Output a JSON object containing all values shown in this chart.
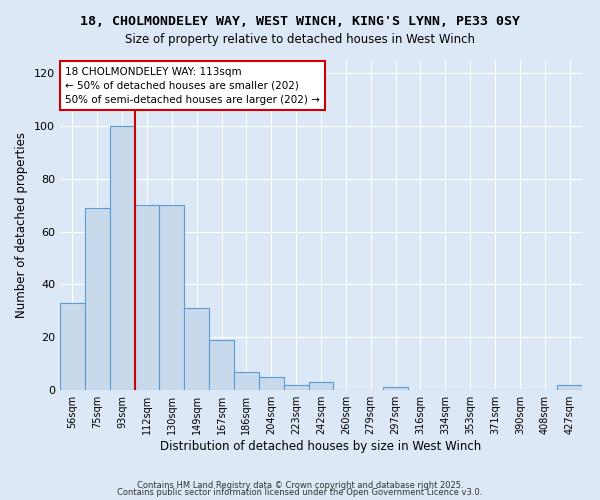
{
  "title": "18, CHOLMONDELEY WAY, WEST WINCH, KING'S LYNN, PE33 0SY",
  "subtitle": "Size of property relative to detached houses in West Winch",
  "xlabel": "Distribution of detached houses by size in West Winch",
  "ylabel": "Number of detached properties",
  "bar_labels": [
    "56sqm",
    "75sqm",
    "93sqm",
    "112sqm",
    "130sqm",
    "149sqm",
    "167sqm",
    "186sqm",
    "204sqm",
    "223sqm",
    "242sqm",
    "260sqm",
    "279sqm",
    "297sqm",
    "316sqm",
    "334sqm",
    "353sqm",
    "371sqm",
    "390sqm",
    "408sqm",
    "427sqm"
  ],
  "bar_values": [
    33,
    69,
    100,
    70,
    70,
    31,
    19,
    7,
    5,
    2,
    3,
    0,
    0,
    1,
    0,
    0,
    0,
    0,
    0,
    0,
    2
  ],
  "bar_color": "#c9d9ec",
  "bar_edge_color": "#5b9bd5",
  "vline_x_index": 3,
  "vline_color": "#cc0000",
  "annotation_text": "18 CHOLMONDELEY WAY: 113sqm\n← 50% of detached houses are smaller (202)\n50% of semi-detached houses are larger (202) →",
  "annotation_box_color": "#ffffff",
  "annotation_box_edge": "#cc0000",
  "ylim": [
    0,
    125
  ],
  "yticks": [
    0,
    20,
    40,
    60,
    80,
    100,
    120
  ],
  "bg_color": "#dce8f5",
  "plot_bg_color": "#dce8f5",
  "grid_color": "#ffffff",
  "footnote1": "Contains HM Land Registry data © Crown copyright and database right 2025.",
  "footnote2": "Contains public sector information licensed under the Open Government Licence v3.0."
}
